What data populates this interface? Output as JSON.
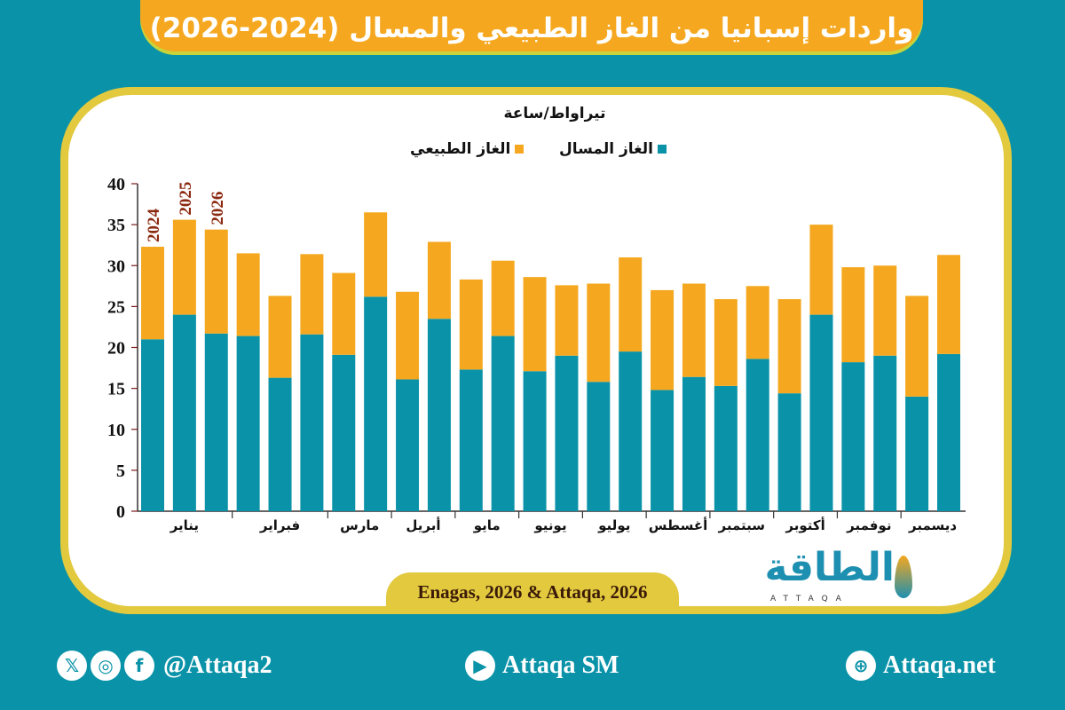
{
  "title": "واردات إسبانيا من الغاز الطبيعي والمسال (2024-2026)",
  "colors": {
    "lng": "#0a93a8",
    "natural_gas": "#f5a81f",
    "year_label": "#8b2a10",
    "background": "#0a93a8",
    "frame": "#e2c93e"
  },
  "chart_data": {
    "type": "bar",
    "stacked": true,
    "ylabel": "تيراواط/ساعة",
    "ylim": [
      0,
      40
    ],
    "yticks": [
      "0",
      "5",
      "10",
      "15",
      "20",
      "25",
      "30",
      "35",
      "40"
    ],
    "legend": [
      "الغاز المسال",
      "الغاز الطبيعي"
    ],
    "legend_placement": "top",
    "grid": false,
    "months": [
      "يناير",
      "فبراير",
      "مارس",
      "أبريل",
      "مايو",
      "يونيو",
      "يوليو",
      "أغسطس",
      "سبتمبر",
      "أكتوبر",
      "نوفمبر",
      "ديسمبر"
    ],
    "year_labels": [
      "2024",
      "2025",
      "2026"
    ],
    "bars": [
      {
        "month": "يناير",
        "year": "2024",
        "lng": 21.0,
        "total": 32.3
      },
      {
        "month": "يناير",
        "year": "2025",
        "lng": 24.0,
        "total": 35.6
      },
      {
        "month": "يناير",
        "year": "2026",
        "lng": 21.7,
        "total": 34.4
      },
      {
        "month": "فبراير",
        "year": "2024",
        "lng": 21.4,
        "total": 31.5
      },
      {
        "month": "فبراير",
        "year": "2025",
        "lng": 16.3,
        "total": 26.3
      },
      {
        "month": "فبراير",
        "year": "2026",
        "lng": 21.6,
        "total": 31.4
      },
      {
        "month": "مارس",
        "year": "2024",
        "lng": 19.1,
        "total": 29.1
      },
      {
        "month": "مارس",
        "year": "2025",
        "lng": 26.2,
        "total": 36.5
      },
      {
        "month": "أبريل",
        "year": "2024",
        "lng": 16.1,
        "total": 26.8
      },
      {
        "month": "أبريل",
        "year": "2025",
        "lng": 23.5,
        "total": 32.9
      },
      {
        "month": "مايو",
        "year": "2024",
        "lng": 17.3,
        "total": 28.3
      },
      {
        "month": "مايو",
        "year": "2025",
        "lng": 21.4,
        "total": 30.6
      },
      {
        "month": "يونيو",
        "year": "2024",
        "lng": 17.1,
        "total": 28.6
      },
      {
        "month": "يونيو",
        "year": "2025",
        "lng": 19.0,
        "total": 27.6
      },
      {
        "month": "يوليو",
        "year": "2024",
        "lng": 15.8,
        "total": 27.8
      },
      {
        "month": "يوليو",
        "year": "2025",
        "lng": 19.5,
        "total": 31.0
      },
      {
        "month": "أغسطس",
        "year": "2024",
        "lng": 14.8,
        "total": 27.0
      },
      {
        "month": "أغسطس",
        "year": "2025",
        "lng": 16.4,
        "total": 27.8
      },
      {
        "month": "سبتمبر",
        "year": "2024",
        "lng": 15.3,
        "total": 25.9
      },
      {
        "month": "سبتمبر",
        "year": "2025",
        "lng": 18.6,
        "total": 27.5
      },
      {
        "month": "أكتوبر",
        "year": "2024",
        "lng": 14.4,
        "total": 25.9
      },
      {
        "month": "أكتوبر",
        "year": "2025",
        "lng": 24.0,
        "total": 35.0
      },
      {
        "month": "نوفمبر",
        "year": "2024",
        "lng": 18.2,
        "total": 29.8
      },
      {
        "month": "نوفمبر",
        "year": "2025",
        "lng": 19.0,
        "total": 30.0
      },
      {
        "month": "ديسمبر",
        "year": "2024",
        "lng": 14.0,
        "total": 26.3
      },
      {
        "month": "ديسمبر",
        "year": "2025",
        "lng": 19.2,
        "total": 31.3
      }
    ]
  },
  "source": "Enagas, 2026 & Attaqa, 2026",
  "logo": {
    "arabic": "الطاقة",
    "english": "ATTAQA"
  },
  "footer": {
    "social_handle": "@Attaqa2",
    "youtube": "Attaqa SM",
    "website": "Attaqa.net",
    "icons": [
      "x-icon",
      "instagram-icon",
      "facebook-icon",
      "youtube-icon",
      "globe-icon"
    ]
  }
}
